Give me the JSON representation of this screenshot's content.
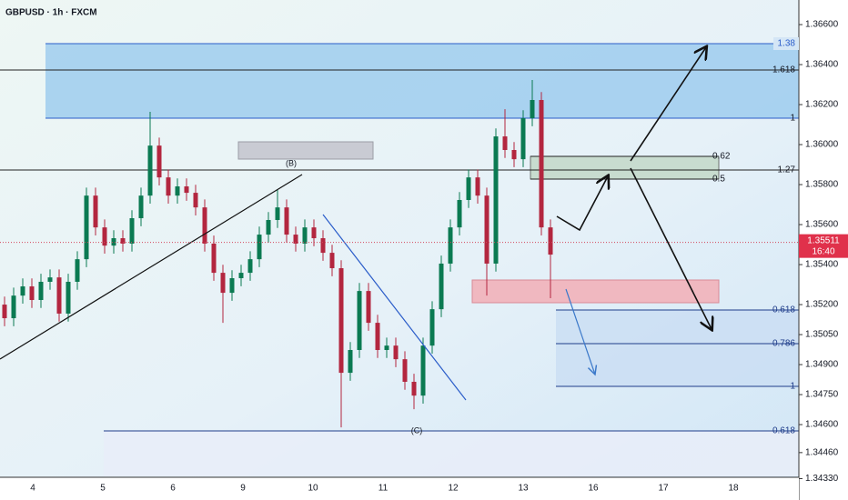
{
  "chart_data": {
    "type": "candlestick",
    "title": "GBPUSD · 1h · FXCM",
    "ylim": [
      1.34223,
      1.36723
    ],
    "yticks": [
      {
        "value": 1.366,
        "label": "1.36600"
      },
      {
        "value": 1.364,
        "label": "1.36400"
      },
      {
        "value": 1.362,
        "label": "1.36200"
      },
      {
        "value": 1.36,
        "label": "1.36000"
      },
      {
        "value": 1.358,
        "label": "1.35800"
      },
      {
        "value": 1.356,
        "label": "1.35600"
      },
      {
        "value": 1.354,
        "label": "1.35400"
      },
      {
        "value": 1.352,
        "label": "1.35200"
      },
      {
        "value": 1.3505,
        "label": "1.35050"
      },
      {
        "value": 1.349,
        "label": "1.34900"
      },
      {
        "value": 1.3475,
        "label": "1.34750"
      },
      {
        "value": 1.346,
        "label": "1.34600"
      },
      {
        "value": 1.3446,
        "label": "1.34460"
      },
      {
        "value": 1.3433,
        "label": "1.34330"
      }
    ],
    "date_labels": [
      "4",
      "5",
      "6",
      "9",
      "10",
      "11",
      "12",
      "13",
      "16",
      "17",
      "18"
    ],
    "up_color": "#0b7a52",
    "down_color": "#b3263f",
    "candles": {
      "open": [
        1.352,
        1.35132,
        1.35245,
        1.35291,
        1.35223,
        1.35314,
        1.35336,
        1.35155,
        1.35314,
        1.35427,
        1.35745,
        1.35586,
        1.35495,
        1.35532,
        1.35505,
        1.35632,
        1.35745,
        1.35995,
        1.35836,
        1.35745,
        1.35791,
        1.35759,
        1.35686,
        1.35505,
        1.35359,
        1.35259,
        1.35332,
        1.35359,
        1.35427,
        1.3555,
        1.35623,
        1.35686,
        1.3555,
        1.35505,
        1.35586,
        1.35532,
        1.35459,
        1.35382,
        1.34859,
        1.34973,
        1.35268,
        1.35109,
        1.34973,
        1.34995,
        1.34927,
        1.34814,
        1.34745,
        1.34995,
        1.35177,
        1.35405,
        1.35586,
        1.35723,
        1.35836,
        1.35745,
        1.35405,
        1.36041,
        1.35973,
        1.35927,
        1.36132,
        1.36223,
        1.35586
      ],
      "high": [
        1.3524,
        1.35285,
        1.35331,
        1.35331,
        1.35354,
        1.35376,
        1.35376,
        1.35354,
        1.35467,
        1.35785,
        1.35785,
        1.35626,
        1.35572,
        1.35572,
        1.35672,
        1.35785,
        1.36164,
        1.36035,
        1.35876,
        1.35831,
        1.35831,
        1.35799,
        1.35726,
        1.35545,
        1.35399,
        1.35372,
        1.35399,
        1.35467,
        1.3559,
        1.35663,
        1.35776,
        1.35726,
        1.3559,
        1.35626,
        1.35626,
        1.35572,
        1.35499,
        1.35422,
        1.35013,
        1.35308,
        1.35308,
        1.35149,
        1.35035,
        1.35035,
        1.34967,
        1.34854,
        1.35035,
        1.35217,
        1.35445,
        1.35626,
        1.35763,
        1.35876,
        1.35876,
        1.35785,
        1.36081,
        1.36177,
        1.36013,
        1.36172,
        1.36323,
        1.36263,
        1.35626
      ],
      "low": [
        1.35092,
        1.35092,
        1.35205,
        1.35183,
        1.35183,
        1.35274,
        1.35115,
        1.35115,
        1.35274,
        1.35387,
        1.35546,
        1.35455,
        1.35455,
        1.35465,
        1.35465,
        1.35592,
        1.35705,
        1.35796,
        1.35705,
        1.35705,
        1.35719,
        1.35646,
        1.35465,
        1.35319,
        1.35109,
        1.35219,
        1.35292,
        1.35319,
        1.35387,
        1.3551,
        1.35583,
        1.3551,
        1.35465,
        1.35465,
        1.35492,
        1.35419,
        1.35342,
        1.34586,
        1.34819,
        1.34933,
        1.35069,
        1.34933,
        1.34933,
        1.34887,
        1.34774,
        1.34677,
        1.34705,
        1.34955,
        1.35137,
        1.35365,
        1.35546,
        1.35683,
        1.35705,
        1.35245,
        1.35365,
        1.35933,
        1.35887,
        1.35887,
        1.36092,
        1.35546,
        1.35232
      ],
      "close": [
        1.35132,
        1.35245,
        1.35291,
        1.35223,
        1.35314,
        1.35336,
        1.35155,
        1.35314,
        1.35427,
        1.35745,
        1.35586,
        1.35495,
        1.35532,
        1.35505,
        1.35632,
        1.35745,
        1.35995,
        1.35836,
        1.35745,
        1.35791,
        1.35759,
        1.35686,
        1.35505,
        1.35359,
        1.35259,
        1.35332,
        1.35359,
        1.35427,
        1.3555,
        1.35623,
        1.35686,
        1.3555,
        1.35505,
        1.35586,
        1.35532,
        1.35459,
        1.35382,
        1.34859,
        1.34973,
        1.35268,
        1.35109,
        1.34973,
        1.34995,
        1.34927,
        1.34814,
        1.34745,
        1.34995,
        1.35177,
        1.35405,
        1.35586,
        1.35723,
        1.35836,
        1.35745,
        1.35405,
        1.36041,
        1.35973,
        1.35927,
        1.36132,
        1.36223,
        1.35586,
        1.3545
      ]
    },
    "last_price": 1.35511,
    "countdown": "16:40",
    "annotations": [
      "(B)",
      "(C)"
    ],
    "fib_labels": [
      "1.38",
      "1.618",
      "1",
      "1.27",
      "0.618",
      "0.786",
      "1",
      "0.618"
    ],
    "zone_labels": [
      "0.62",
      "0.5"
    ]
  }
}
